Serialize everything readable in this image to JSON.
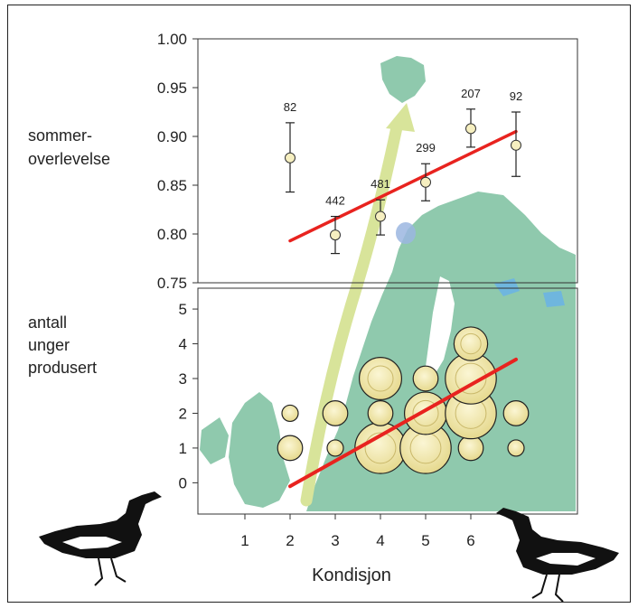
{
  "chart_data": [
    {
      "type": "scatter",
      "title": "",
      "ylabel_lines": [
        "sommer-",
        "overlevelse"
      ],
      "xlabel": "",
      "ylim": [
        0.75,
        1.0
      ],
      "yticks": [
        "0.75",
        "0.80",
        "0.85",
        "0.90",
        "0.95",
        "1.00"
      ],
      "points": [
        {
          "x": 2,
          "y": 0.878,
          "lo": 0.843,
          "hi": 0.914,
          "n": "82"
        },
        {
          "x": 3,
          "y": 0.799,
          "lo": 0.78,
          "hi": 0.818,
          "n": "442"
        },
        {
          "x": 4,
          "y": 0.818,
          "lo": 0.799,
          "hi": 0.835,
          "n": "481"
        },
        {
          "x": 5,
          "y": 0.853,
          "lo": 0.834,
          "hi": 0.872,
          "n": "299"
        },
        {
          "x": 6,
          "y": 0.908,
          "lo": 0.889,
          "hi": 0.928,
          "n": "207"
        },
        {
          "x": 7,
          "y": 0.891,
          "lo": 0.859,
          "hi": 0.925,
          "n": "92"
        }
      ],
      "trend": {
        "x": [
          2,
          7
        ],
        "y": [
          0.793,
          0.905
        ],
        "color": "#e8231f"
      }
    },
    {
      "type": "scatter",
      "title": "",
      "ylabel_lines": [
        "antall",
        "unger",
        "produsert"
      ],
      "xlabel": "Kondisjon",
      "ylim": [
        -0.9,
        5.6
      ],
      "yticks": [
        "0",
        "1",
        "2",
        "3",
        "4",
        "5"
      ],
      "xticks": [
        "1",
        "2",
        "3",
        "4",
        "5",
        "6"
      ],
      "bubbles": [
        {
          "x": 2,
          "y": 1,
          "size": 2
        },
        {
          "x": 2,
          "y": 2,
          "size": 1
        },
        {
          "x": 3,
          "y": 1,
          "size": 1
        },
        {
          "x": 3,
          "y": 2,
          "size": 2
        },
        {
          "x": 4,
          "y": 1,
          "size": 5
        },
        {
          "x": 4,
          "y": 2,
          "size": 2
        },
        {
          "x": 4,
          "y": 3,
          "size": 4
        },
        {
          "x": 5,
          "y": 1,
          "size": 5
        },
        {
          "x": 5,
          "y": 2,
          "size": 4
        },
        {
          "x": 5,
          "y": 3,
          "size": 2
        },
        {
          "x": 6,
          "y": 1,
          "size": 2
        },
        {
          "x": 6,
          "y": 2,
          "size": 5
        },
        {
          "x": 6,
          "y": 3,
          "size": 5
        },
        {
          "x": 6,
          "y": 4,
          "size": 3
        },
        {
          "x": 7,
          "y": 1,
          "size": 1
        },
        {
          "x": 7,
          "y": 2,
          "size": 2
        }
      ],
      "trend": {
        "x": [
          2,
          7
        ],
        "y": [
          -0.1,
          3.55
        ],
        "color": "#e8231f"
      }
    }
  ],
  "colors": {
    "map_land": "#8fc9ad",
    "map_water": "#ffffff",
    "lake": "#6fb6de",
    "arrow": "#d8e49a",
    "bubble_fill": "#e6d98e",
    "bubble_highlight": "#fbf6d4",
    "point_fill": "#f6efc0"
  },
  "icons": {
    "left": "goose-icon",
    "right": "goose-icon"
  }
}
